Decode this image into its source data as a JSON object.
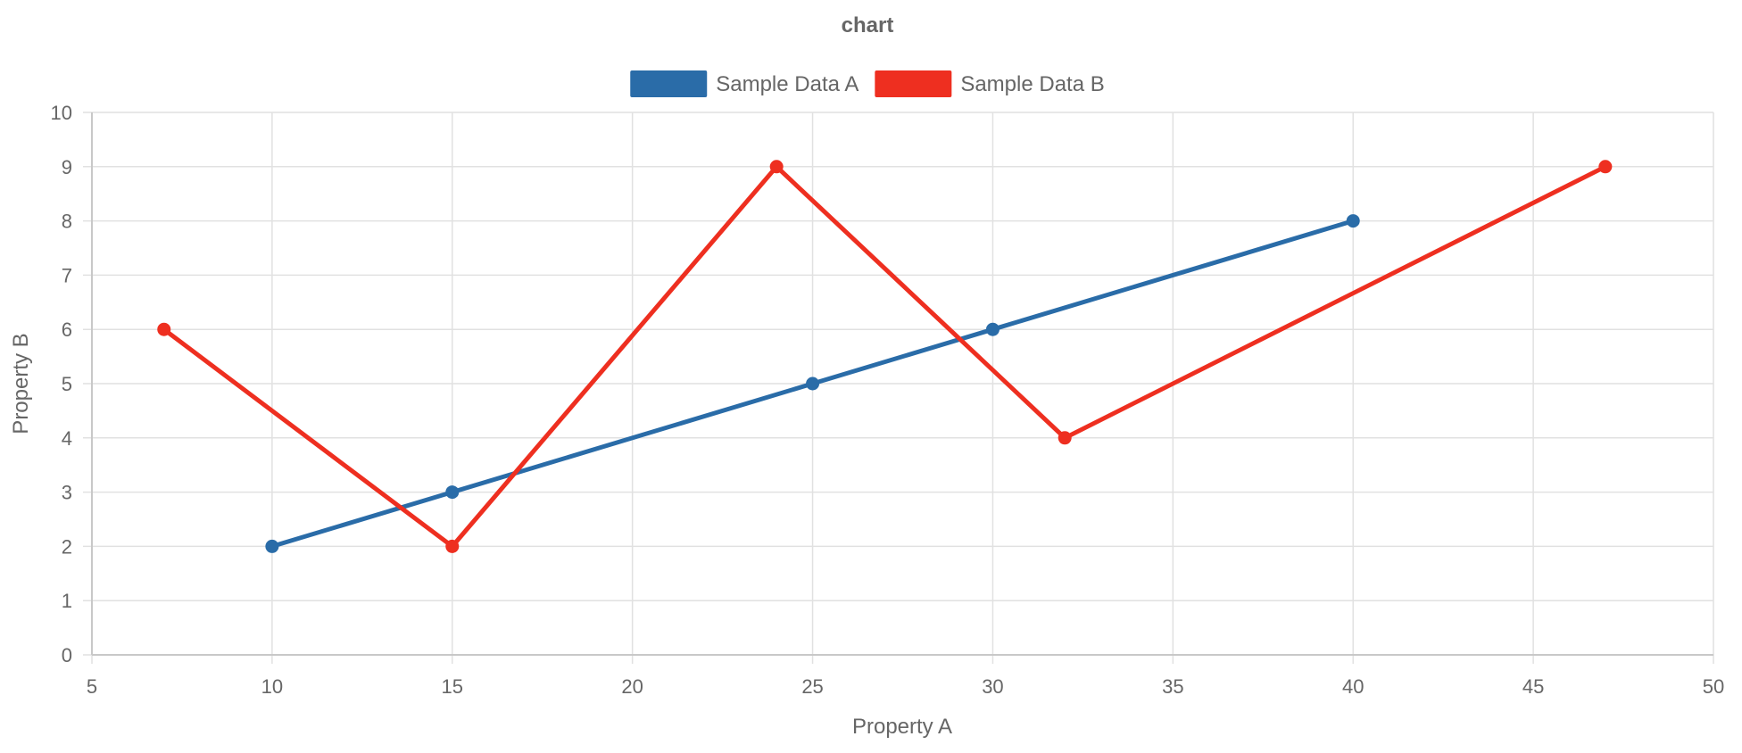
{
  "chart_data": {
    "type": "line",
    "title": "chart",
    "xlabel": "Property A",
    "ylabel": "Property B",
    "xlim": [
      5,
      50
    ],
    "ylim": [
      0,
      10
    ],
    "x_ticks": [
      5,
      10,
      15,
      20,
      25,
      30,
      35,
      40,
      45,
      50
    ],
    "y_ticks": [
      0,
      1,
      2,
      3,
      4,
      5,
      6,
      7,
      8,
      9,
      10
    ],
    "grid": true,
    "legend_position": "top",
    "series": [
      {
        "name": "Sample Data A",
        "color": "#2a6ca8",
        "points": [
          {
            "x": 10,
            "y": 2
          },
          {
            "x": 15,
            "y": 3
          },
          {
            "x": 25,
            "y": 5
          },
          {
            "x": 30,
            "y": 6
          },
          {
            "x": 40,
            "y": 8
          }
        ]
      },
      {
        "name": "Sample Data B",
        "color": "#ee2f20",
        "points": [
          {
            "x": 7,
            "y": 6
          },
          {
            "x": 15,
            "y": 2
          },
          {
            "x": 24,
            "y": 9
          },
          {
            "x": 32,
            "y": 4
          },
          {
            "x": 47,
            "y": 9
          }
        ]
      }
    ]
  }
}
